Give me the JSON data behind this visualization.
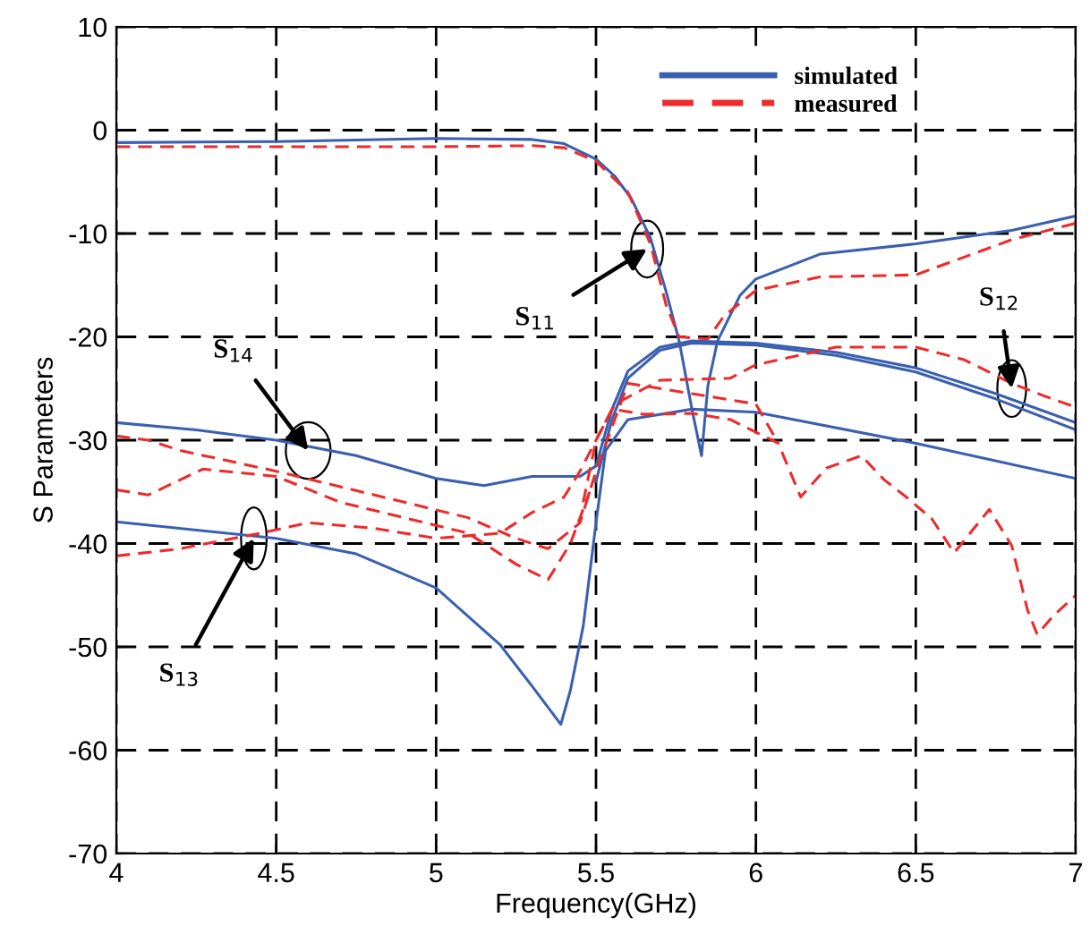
{
  "chart_data": {
    "type": "line",
    "xlabel": "Frequency(GHz)",
    "ylabel": "S Parameters",
    "xlim": [
      4,
      7
    ],
    "ylim": [
      -70,
      10
    ],
    "xticks": [
      4,
      4.5,
      5,
      5.5,
      6,
      6.5,
      7
    ],
    "yticks": [
      -70,
      -60,
      -50,
      -40,
      -30,
      -20,
      -10,
      0,
      10
    ],
    "grid": true,
    "legend": "top right",
    "series": [
      {
        "name": "simulated",
        "color": "#3a5fb0",
        "line_style": "solid",
        "x": [
          4,
          4.5,
          5,
          5.3,
          5.4,
          5.5,
          5.56,
          5.61,
          5.67,
          5.72,
          5.76,
          5.8,
          5.83,
          5.85,
          5.88,
          5.95,
          6.0,
          6.2,
          6.5,
          6.8,
          7
        ],
        "values": [
          -1.2,
          -1.1,
          -0.8,
          -0.9,
          -1.3,
          -2.8,
          -4.5,
          -6.6,
          -10.4,
          -15.7,
          -20.4,
          -27,
          -31.5,
          -24.7,
          -20.4,
          -16,
          -14.4,
          -12,
          -11,
          -9.7,
          -8.3
        ]
      },
      {
        "name": "measured",
        "color": "#ee2a2a",
        "line_style": "dashed",
        "x": [
          4,
          4.5,
          5,
          5.3,
          5.4,
          5.5,
          5.6,
          5.67,
          5.72,
          5.76,
          5.85,
          5.9,
          6.0,
          6.2,
          6.5,
          6.8,
          7
        ],
        "values": [
          -1.6,
          -1.6,
          -1.6,
          -1.5,
          -1.7,
          -3,
          -6,
          -11,
          -17,
          -20,
          -20.2,
          -18,
          -15.5,
          -14.2,
          -14,
          -10.6,
          -9
        ]
      },
      {
        "color": "#3a5fb0",
        "line_style": "solid",
        "x": [
          4,
          4.25,
          4.5,
          4.75,
          5.0,
          5.15,
          5.3,
          5.45,
          5.5,
          5.55,
          5.6,
          5.7,
          5.8,
          6.0,
          6.25,
          6.5,
          6.75,
          7
        ],
        "values": [
          -28.3,
          -29,
          -30,
          -31.5,
          -33.7,
          -34.4,
          -33.5,
          -33.5,
          -32.5,
          -27,
          -23.3,
          -21,
          -20.4,
          -20.6,
          -21.5,
          -23,
          -25.5,
          -28.3
        ]
      },
      {
        "color": "#3a5fb0",
        "line_style": "solid",
        "x": [
          5.5,
          5.55,
          5.6,
          5.7,
          5.8,
          6.0,
          6.25,
          6.5,
          6.75,
          7
        ],
        "values": [
          -34,
          -28,
          -24,
          -21.3,
          -20.6,
          -20.8,
          -21.8,
          -23.4,
          -26,
          -29
        ]
      },
      {
        "color": "#3a5fb0",
        "line_style": "solid",
        "x": [
          4,
          4.5,
          4.75,
          5.0,
          5.2,
          5.3,
          5.39,
          5.42,
          5.46,
          5.5,
          5.53,
          5.6,
          5.8,
          6.0,
          6.5,
          7
        ],
        "values": [
          -37.9,
          -39.5,
          -41,
          -44.3,
          -49.8,
          -53.8,
          -57.5,
          -54.2,
          -48,
          -38,
          -31,
          -28,
          -27,
          -27.3,
          -30.3,
          -33.7
        ]
      },
      {
        "color": "#ee2a2a",
        "line_style": "dashed",
        "x": [
          5.46,
          5.5,
          5.56,
          5.7,
          5.92,
          6.0,
          6.25,
          6.5,
          6.65,
          6.8,
          6.9,
          7
        ],
        "values": [
          -36,
          -30,
          -26.5,
          -24.2,
          -24,
          -22.7,
          -21,
          -21,
          -22.2,
          -24.5,
          -25.7,
          -26.8
        ]
      },
      {
        "color": "#ee2a2a",
        "line_style": "dashed",
        "x": [
          4,
          4.1,
          4.2,
          4.35,
          4.5,
          4.7,
          4.9,
          5.1,
          5.25,
          5.35,
          5.45,
          5.5,
          5.6,
          5.8,
          6.0,
          6.07
        ],
        "values": [
          -29.6,
          -30,
          -31,
          -32,
          -33,
          -34.5,
          -36,
          -37.5,
          -39.5,
          -40.5,
          -38,
          -33,
          -24.5,
          -25.5,
          -26.5,
          -30.3
        ]
      },
      {
        "color": "#ee2a2a",
        "line_style": "dashed",
        "x": [
          4,
          4.1,
          4.27,
          4.5,
          4.7,
          4.9,
          5.1,
          5.25,
          5.35,
          5.42,
          5.48
        ],
        "values": [
          -34.8,
          -35.3,
          -32.8,
          -33.5,
          -36,
          -37.5,
          -39,
          -42,
          -43.5,
          -40,
          -35
        ]
      },
      {
        "color": "#ee2a2a",
        "line_style": "dashed",
        "x": [
          4,
          4.2,
          4.45,
          4.6,
          4.8,
          5.0,
          5.2,
          5.3,
          5.4,
          5.45,
          5.5,
          5.55,
          5.65,
          5.8,
          5.92,
          6.07,
          6.14,
          6.22,
          6.33,
          6.4,
          6.47,
          6.55,
          6.62,
          6.73,
          6.8,
          6.85,
          6.88,
          6.93,
          7
        ],
        "values": [
          -41.2,
          -40.5,
          -39,
          -38,
          -38.5,
          -39.5,
          -39,
          -37,
          -35.5,
          -33,
          -30,
          -27,
          -27.5,
          -27.4,
          -28,
          -30.3,
          -35.5,
          -32.7,
          -31.5,
          -33.8,
          -35.5,
          -37.6,
          -40.9,
          -36.7,
          -40.2,
          -46.5,
          -48.8,
          -47,
          -45
        ]
      }
    ],
    "annotations": [
      {
        "text": "S$_{11}$",
        "x": 5.66,
        "y": -11.5
      },
      {
        "text": "S$_{12}$",
        "x": 6.8,
        "y": -25
      },
      {
        "text": "S$_{14}$",
        "x": 4.6,
        "y": -31
      },
      {
        "text": "S$_{13}$",
        "x": 4.43,
        "y": -39.5
      }
    ]
  }
}
